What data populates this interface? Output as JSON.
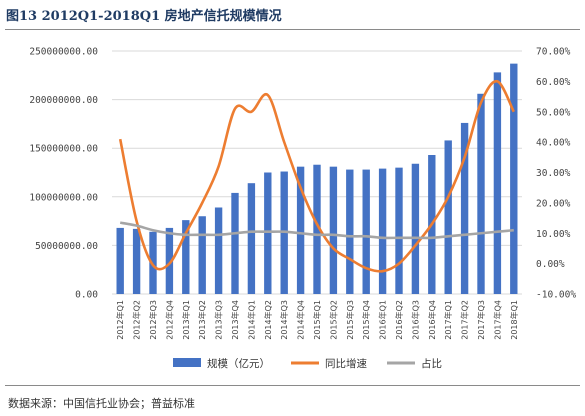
{
  "figure": {
    "title": "图13   2012Q1-2018Q1 房地产信托规模情况",
    "source": "数据来源：中国信托业协会；普益标准"
  },
  "colors": {
    "bar": "#4472c4",
    "growth_line": "#ed7d31",
    "share_line": "#a5a5a5",
    "title": "#1f3b63"
  },
  "chart_data": {
    "type": "bar",
    "categories": [
      "2012年Q1",
      "2012年Q2",
      "2012年Q3",
      "2012年Q4",
      "2013年Q1",
      "2013年Q2",
      "2013年Q3",
      "2013年Q4",
      "2014年Q1",
      "2014年Q2",
      "2014年Q3",
      "2014年Q4",
      "2015年Q1",
      "2015年Q2",
      "2015年Q3",
      "2015年Q4",
      "2016年Q1",
      "2016年Q2",
      "2016年Q3",
      "2016年Q4",
      "2017年Q1",
      "2017年Q2",
      "2017年Q3",
      "2017年Q4",
      "2018年Q1"
    ],
    "y_left": {
      "ylim": [
        0,
        250000000
      ],
      "ticks": [
        "0.00",
        "50000000.00",
        "100000000.00",
        "150000000.00",
        "200000000.00",
        "250000000.00"
      ],
      "tick_values": [
        0,
        50000000,
        100000000,
        150000000,
        200000000,
        250000000
      ]
    },
    "y_right": {
      "ylim": [
        -10,
        70
      ],
      "ticks": [
        "-10.00%",
        "0.00%",
        "10.00%",
        "20.00%",
        "30.00%",
        "40.00%",
        "50.00%",
        "60.00%",
        "70.00%"
      ],
      "tick_values": [
        -10,
        0,
        10,
        20,
        30,
        40,
        50,
        60,
        70
      ]
    },
    "series": [
      {
        "name": "规模（亿元）",
        "type": "bar",
        "axis": "left",
        "values": [
          68000000,
          67000000,
          64000000,
          68000000,
          76000000,
          80000000,
          89000000,
          104000000,
          114000000,
          125000000,
          126000000,
          131000000,
          133000000,
          131000000,
          128000000,
          128000000,
          129000000,
          130000000,
          134000000,
          143000000,
          158000000,
          176000000,
          206000000,
          228000000,
          237000000
        ]
      },
      {
        "name": "同比增速",
        "type": "line",
        "axis": "right",
        "values": [
          41,
          14,
          -0.5,
          0,
          10,
          20,
          32,
          51,
          50,
          55.5,
          40,
          25,
          13,
          5,
          1.5,
          -1.5,
          -2.5,
          0,
          6,
          13,
          22,
          35,
          53,
          60,
          50
        ]
      },
      {
        "name": "占比",
        "type": "line",
        "axis": "right",
        "values": [
          13.5,
          12.5,
          11,
          10,
          9.5,
          9.5,
          9.5,
          10,
          10.5,
          10.5,
          10.5,
          10,
          9.5,
          9.5,
          9,
          9,
          8.5,
          8.5,
          8.5,
          8.5,
          9,
          9.5,
          10,
          10.5,
          11
        ]
      }
    ],
    "grid": true,
    "legend_position": "bottom"
  }
}
